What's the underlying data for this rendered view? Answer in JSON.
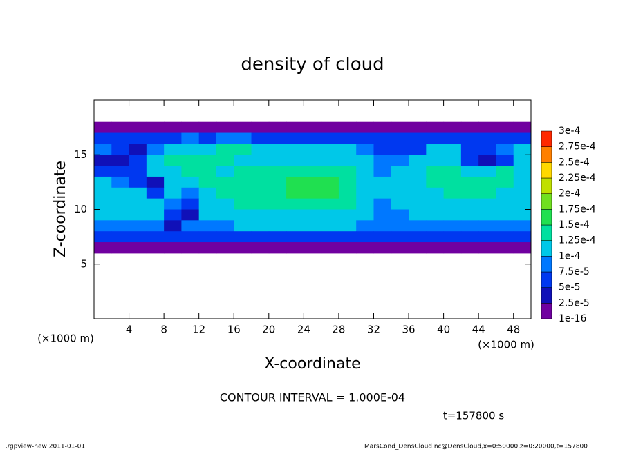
{
  "chart_data": {
    "type": "heatmap",
    "title": "density of cloud",
    "xlabel": "X-coordinate",
    "ylabel": "Z-coordinate",
    "x_unit": "(×1000 m)",
    "y_unit": "(×1000 m)",
    "xlim": [
      0,
      50
    ],
    "ylim": [
      0,
      20
    ],
    "xticks": [
      4,
      8,
      12,
      16,
      20,
      24,
      28,
      32,
      36,
      40,
      44,
      48
    ],
    "yticks": [
      5,
      10,
      15
    ],
    "x": [
      1,
      3,
      5,
      7,
      9,
      11,
      13,
      15,
      17,
      19,
      21,
      23,
      25,
      27,
      29,
      31,
      33,
      35,
      37,
      39,
      41,
      43,
      45,
      47,
      49
    ],
    "y": [
      17.5,
      16.5,
      15.5,
      14.5,
      13.5,
      12.5,
      11.5,
      10.5,
      9.5,
      8.5,
      7.5,
      6.5
    ],
    "z": [
      [
        2e-05,
        2e-05,
        2e-05,
        2e-05,
        2e-05,
        2e-05,
        2e-05,
        2e-05,
        2e-05,
        2e-05,
        2e-05,
        2e-05,
        2e-05,
        2e-05,
        2e-05,
        2e-05,
        2e-05,
        2e-05,
        2e-05,
        2e-05,
        2e-05,
        2e-05,
        2e-05,
        2e-05,
        2e-05
      ],
      [
        6e-05,
        6e-05,
        7e-05,
        6e-05,
        7e-05,
        8e-05,
        7e-05,
        8e-05,
        8e-05,
        7e-05,
        7e-05,
        6e-05,
        6e-05,
        7e-05,
        7e-05,
        6e-05,
        6e-05,
        5e-05,
        5e-05,
        6e-05,
        6e-05,
        6e-05,
        7e-05,
        7e-05,
        6e-05
      ],
      [
        8e-05,
        5e-05,
        4e-05,
        9e-05,
        0.00011,
        0.00012,
        0.00012,
        0.00013,
        0.00013,
        0.00012,
        0.00012,
        0.00011,
        0.00011,
        0.00011,
        0.0001,
        9e-05,
        7e-05,
        6e-05,
        7e-05,
        0.0001,
        0.00011,
        6e-05,
        5e-05,
        9e-05,
        0.00011
      ],
      [
        4e-05,
        3e-05,
        6e-05,
        0.00011,
        0.00013,
        0.00013,
        0.00014,
        0.00013,
        0.00012,
        0.00012,
        0.00012,
        0.00012,
        0.00012,
        0.00011,
        0.00011,
        0.0001,
        8e-05,
        9e-05,
        0.0001,
        0.00012,
        0.00012,
        5e-05,
        3e-05,
        6e-05,
        0.00011
      ],
      [
        7e-05,
        5e-05,
        7e-05,
        0.0001,
        0.00012,
        0.00013,
        0.00013,
        0.00012,
        0.00013,
        0.00013,
        0.00014,
        0.00014,
        0.00014,
        0.00014,
        0.00013,
        0.00011,
        8e-05,
        0.0001,
        0.00012,
        0.00013,
        0.00013,
        0.00012,
        0.00012,
        0.00013,
        0.00012
      ],
      [
        0.00011,
        8e-05,
        5e-05,
        3e-05,
        0.0001,
        0.00012,
        0.00013,
        0.00013,
        0.00014,
        0.00014,
        0.00014,
        0.00015,
        0.00015,
        0.00015,
        0.00014,
        0.00012,
        0.0001,
        0.00011,
        0.00012,
        0.00013,
        0.00013,
        0.00013,
        0.00013,
        0.00013,
        0.00012
      ],
      [
        0.00012,
        0.00011,
        0.0001,
        6e-05,
        0.00011,
        9e-05,
        0.00012,
        0.00013,
        0.00014,
        0.00014,
        0.00014,
        0.00015,
        0.00015,
        0.00015,
        0.00014,
        0.00012,
        0.00011,
        0.0001,
        0.00011,
        0.00012,
        0.00013,
        0.00013,
        0.00013,
        0.00012,
        0.00012
      ],
      [
        0.00012,
        0.00012,
        0.00012,
        0.00012,
        8e-05,
        6e-05,
        0.00011,
        0.00012,
        0.00013,
        0.00013,
        0.00014,
        0.00014,
        0.00014,
        0.00014,
        0.00013,
        0.0001,
        8e-05,
        0.0001,
        0.00011,
        0.00011,
        0.00012,
        0.00012,
        0.00012,
        0.00012,
        0.00012
      ],
      [
        0.00011,
        0.00011,
        0.00011,
        0.0001,
        5e-05,
        4e-05,
        0.0001,
        0.00011,
        0.00012,
        0.00012,
        0.00012,
        0.00012,
        0.00012,
        0.00012,
        0.00012,
        0.0001,
        8e-05,
        9e-05,
        0.0001,
        0.00011,
        0.00011,
        0.00011,
        0.00011,
        0.00011,
        0.00011
      ],
      [
        9e-05,
        9e-05,
        9e-05,
        9e-05,
        3e-05,
        8e-05,
        9e-05,
        9e-05,
        0.0001,
        0.0001,
        0.0001,
        0.0001,
        0.0001,
        0.0001,
        0.0001,
        9e-05,
        9e-05,
        9e-05,
        9e-05,
        9e-05,
        9e-05,
        9e-05,
        9e-05,
        9e-05,
        9e-05
      ],
      [
        5e-05,
        5e-05,
        5e-05,
        5e-05,
        5e-05,
        5e-05,
        5e-05,
        5e-05,
        5e-05,
        5e-05,
        5e-05,
        5e-05,
        5e-05,
        5e-05,
        5e-05,
        5e-05,
        5e-05,
        5e-05,
        5e-05,
        5e-05,
        5e-05,
        5e-05,
        5e-05,
        5e-05,
        5e-05
      ],
      [
        2e-05,
        2e-05,
        2e-05,
        2e-05,
        2e-05,
        2e-05,
        2e-05,
        2e-05,
        2e-05,
        2e-05,
        2e-05,
        2e-05,
        2e-05,
        2e-05,
        2e-05,
        2e-05,
        2e-05,
        2e-05,
        2e-05,
        2e-05,
        2e-05,
        2e-05,
        2e-05,
        2e-05,
        2e-05
      ]
    ],
    "levels": [
      {
        "value": 1e-16,
        "label": "1e-16"
      },
      {
        "value": 2.5e-05,
        "label": "2.5e-5"
      },
      {
        "value": 5e-05,
        "label": "5e-5"
      },
      {
        "value": 7.5e-05,
        "label": "7.5e-5"
      },
      {
        "value": 0.0001,
        "label": "1e-4"
      },
      {
        "value": 0.000125,
        "label": "1.25e-4"
      },
      {
        "value": 0.00015,
        "label": "1.5e-4"
      },
      {
        "value": 0.000175,
        "label": "1.75e-4"
      },
      {
        "value": 0.0002,
        "label": "2e-4"
      },
      {
        "value": 0.000225,
        "label": "2.25e-4"
      },
      {
        "value": 0.00025,
        "label": "2.5e-4"
      },
      {
        "value": 0.000275,
        "label": "2.75e-4"
      },
      {
        "value": 0.0003,
        "label": "3e-4"
      }
    ],
    "colors": [
      "#7000a0",
      "#1010b8",
      "#0038f0",
      "#0078ff",
      "#00c8e8",
      "#00e0a0",
      "#20e050",
      "#70e020",
      "#c0e000",
      "#ffd800",
      "#ff8000",
      "#ff2800",
      "#ff8888"
    ],
    "contour_interval": "CONTOUR INTERVAL = 1.000E-04",
    "time": "t=157800 s",
    "footer_left": "./gpview-new  2011-01-01",
    "footer_right": "MarsCond_DensCloud.nc@DensCloud,x=0:50000,z=0:20000,t=157800"
  }
}
